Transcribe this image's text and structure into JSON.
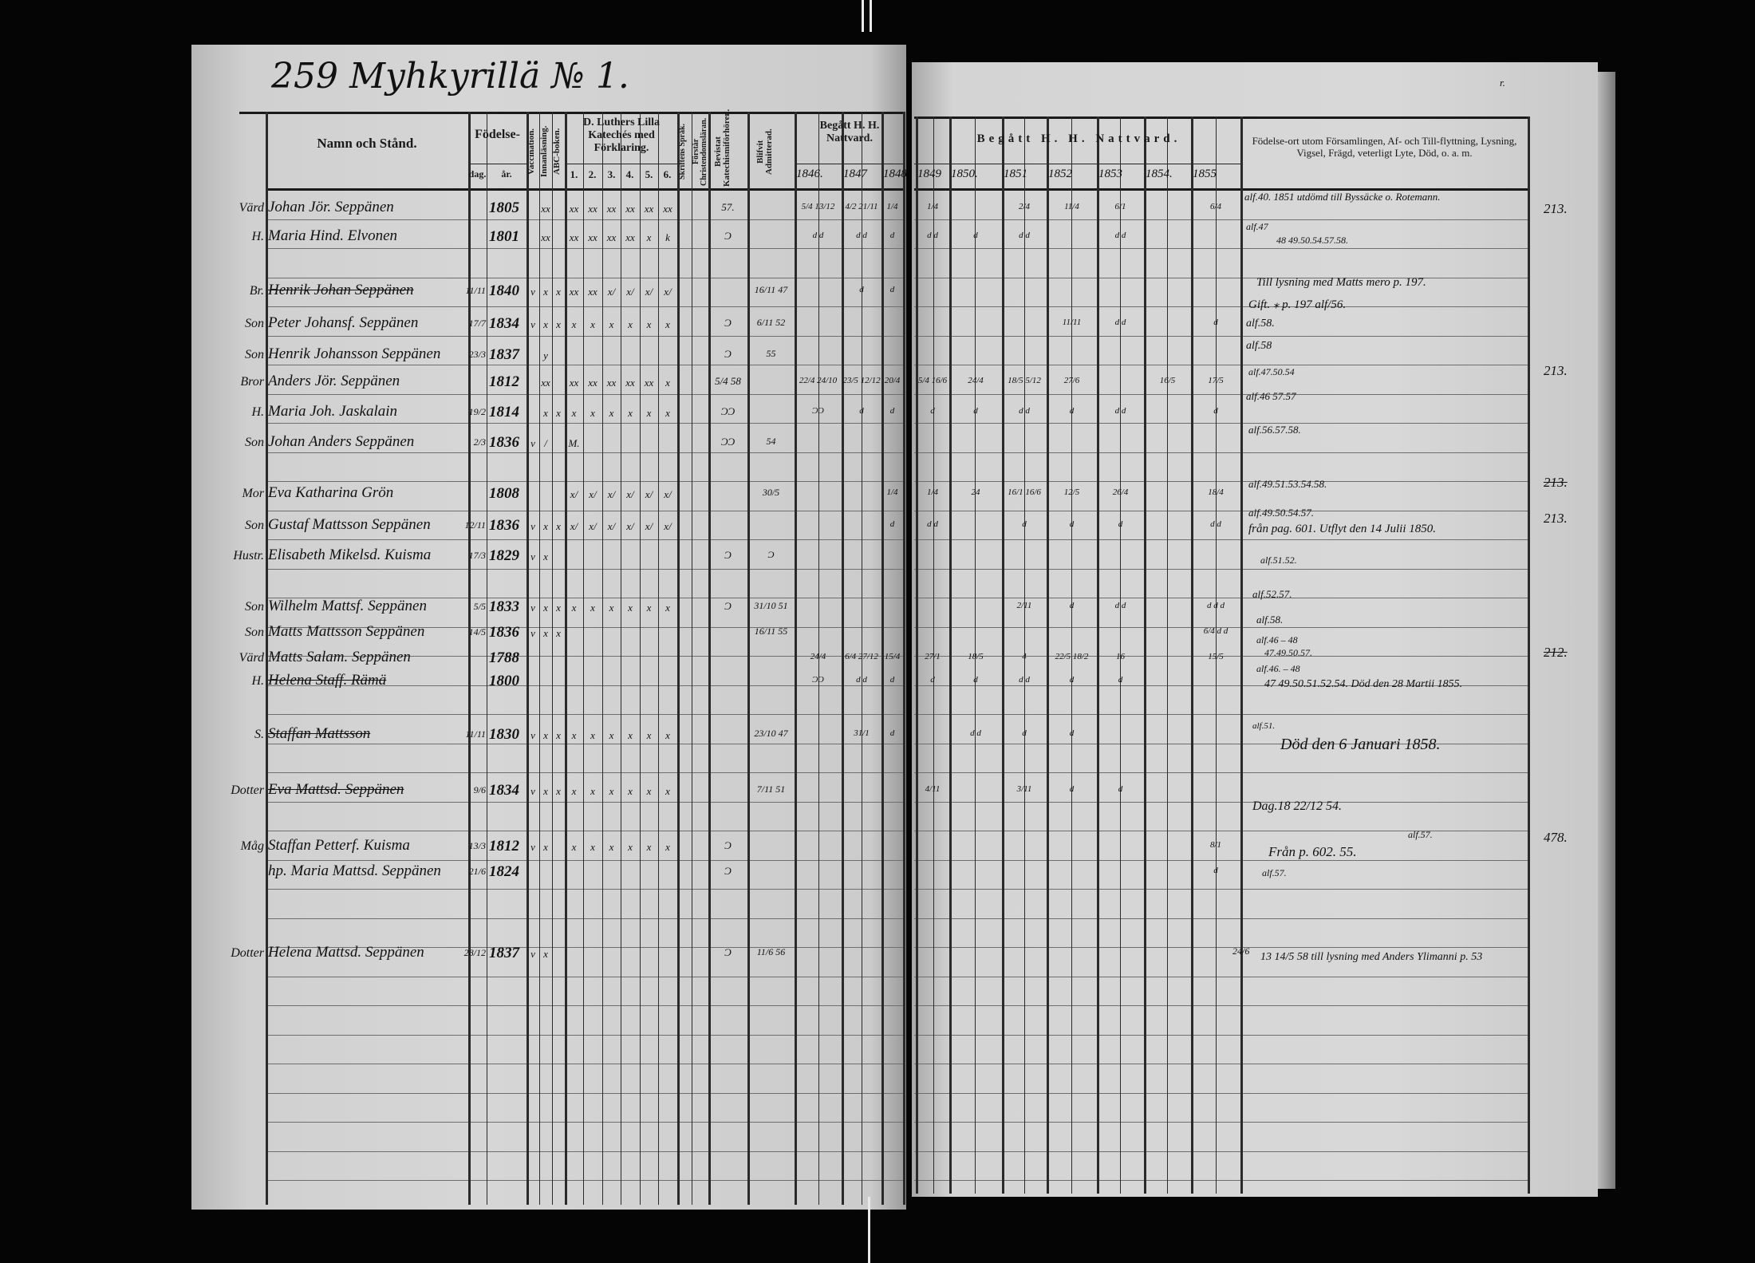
{
  "page_title": "259 Myhkyrillä № 1.",
  "corner_note": "r.",
  "headers": {
    "name": "Namn och Stånd.",
    "birth": "Födelse-",
    "day": "dag.",
    "year": "år.",
    "vaccination": "Vaccination.",
    "reading": "Innanläsning.",
    "abc": "ABC-boken.",
    "catechism": "D. Luthers Lilla Katechés med Förklaring.",
    "catechism_parts": [
      "1.",
      "2.",
      "3.",
      "4.",
      "5.",
      "6."
    ],
    "scripture": "Skriftens Språk.",
    "understands": "Förstår Christendomsläran.",
    "attended": "Bevistat Katechismiförhören.",
    "admitted": "Blifvit Admitterad.",
    "communion_left": "Begått H. H. Nattvard.",
    "communion_right": "Begått H. H. Nattvard.",
    "years": [
      "1846.",
      "1847",
      "1848",
      "1849",
      "1850.",
      "1851",
      "1852",
      "1853",
      "1854.",
      "1855"
    ],
    "remarks": "Födelse-ort utom Församlingen, Af- och Till-flyttning, Lysning, Vigsel, Frägd, veterligt Lyte, Död, o. a. m."
  },
  "entries": [
    {
      "role": "Värd",
      "name": "Johan Jör. Seppänen",
      "day": "",
      "year": "1805",
      "marks": [
        "",
        "xx",
        "",
        "xx",
        "xx",
        "xx",
        "xx",
        "xx",
        "xx"
      ],
      "attended": "57.",
      "admitted": "",
      "communion": [
        "5/4 13/12",
        "4/2 21/11",
        "1/4",
        "1/4",
        "",
        "2/4",
        "11/4",
        "6/1",
        "",
        "6/4"
      ],
      "struck": false
    },
    {
      "role": "H.",
      "name": "Maria Hind. Elvonen",
      "day": "",
      "year": "1801",
      "marks": [
        "",
        "xx",
        "",
        "xx",
        "xx",
        "xx",
        "xx",
        "x",
        "k"
      ],
      "attended": "Ɔ",
      "admitted": "",
      "communion": [
        "d d",
        "d d",
        "d",
        "d d",
        "d",
        "d d",
        "",
        "d d",
        "",
        ""
      ],
      "struck": false
    },
    {
      "role": "Br.",
      "name": "Henrik Johan Seppänen",
      "day": "11/11",
      "year": "1840",
      "marks": [
        "v",
        "x",
        "x",
        "xx",
        "xx",
        "x/",
        "x/",
        "x/",
        "x/"
      ],
      "attended": "",
      "admitted": "16/11 47",
      "communion": [
        "",
        "d",
        "d",
        "",
        "",
        "",
        "",
        "",
        "",
        ""
      ],
      "struck": true
    },
    {
      "role": "Son",
      "name": "Peter Johansf. Seppänen",
      "day": "17/7",
      "year": "1834",
      "marks": [
        "v",
        "x",
        "x",
        "x",
        "x",
        "x",
        "x",
        "x",
        "x"
      ],
      "attended": "Ɔ",
      "admitted": "6/11 52",
      "communion": [
        "",
        "",
        "",
        "",
        "",
        "",
        "11/11",
        "d d",
        "",
        "d"
      ],
      "struck": false
    },
    {
      "role": "Son",
      "name": "Henrik Johansson Seppänen",
      "day": "23/3",
      "year": "1837",
      "marks": [
        "",
        "y",
        "",
        "",
        "",
        "",
        "",
        "",
        ""
      ],
      "attended": "Ɔ",
      "admitted": "55",
      "communion": [
        "",
        "",
        "",
        "",
        "",
        "",
        "",
        "",
        "",
        ""
      ],
      "struck": false
    },
    {
      "role": "Bror",
      "name": "Anders Jör. Seppänen",
      "day": "",
      "year": "1812",
      "marks": [
        "",
        "xx",
        "",
        "xx",
        "xx",
        "xx",
        "xx",
        "xx",
        "x"
      ],
      "attended": "5/4 58",
      "admitted": "",
      "communion": [
        "22/4 24/10",
        "23/5 12/12",
        "20/4",
        "5/4 16/6",
        "24/4",
        "18/5 5/12",
        "27/6",
        "",
        "16/5",
        "17/5"
      ],
      "struck": false
    },
    {
      "role": "H.",
      "name": "Maria Joh. Jaskalain",
      "day": "19/2",
      "year": "1814",
      "marks": [
        "",
        "x",
        "x",
        "x",
        "x",
        "x",
        "x",
        "x",
        "x"
      ],
      "attended": "ƆƆ",
      "admitted": "",
      "communion": [
        "ƆƆ",
        "d",
        "d",
        "d",
        "d",
        "d d",
        "d",
        "d d",
        "",
        "d"
      ],
      "struck": false
    },
    {
      "role": "Son",
      "name": "Johan Anders Seppänen",
      "day": "2/3",
      "year": "1836",
      "marks": [
        "v",
        "/",
        "",
        "M.",
        "",
        "",
        "",
        "",
        ""
      ],
      "attended": "ƆƆ",
      "admitted": "54",
      "communion": [
        "",
        "",
        "",
        "",
        "",
        "",
        "",
        "",
        "",
        ""
      ],
      "struck": false
    },
    {
      "role": "Mor",
      "name": "Eva Katharina Grön",
      "day": "",
      "year": "1808",
      "marks": [
        "",
        "",
        "",
        "x/",
        "x/",
        "x/",
        "x/",
        "x/",
        "x/"
      ],
      "attended": "",
      "admitted": "30/5",
      "communion": [
        "",
        "",
        "1/4",
        "1/4",
        "24",
        "16/1 16/6",
        "12/5",
        "26/4",
        "",
        "18/4"
      ],
      "struck": false
    },
    {
      "role": "Son",
      "name": "Gustaf Mattsson Seppänen",
      "day": "12/11",
      "year": "1836",
      "marks": [
        "v",
        "x",
        "x",
        "x/",
        "x/",
        "x/",
        "x/",
        "x/",
        "x/"
      ],
      "attended": "",
      "admitted": "",
      "communion": [
        "",
        "",
        "d",
        "d d",
        "",
        "d",
        "d",
        "d",
        "",
        "d d"
      ],
      "struck": false
    },
    {
      "role": "Hustr.",
      "name": "Elisabeth Mikelsd. Kuisma",
      "day": "17/3",
      "year": "1829",
      "marks": [
        "v",
        "x",
        "",
        "",
        "",
        "",
        "",
        "",
        ""
      ],
      "attended": "Ɔ",
      "admitted": "Ɔ",
      "communion": [
        "",
        "",
        "",
        "",
        "",
        "",
        "",
        "",
        "",
        ""
      ],
      "struck": false
    },
    {
      "role": "Son",
      "name": "Wilhelm Mattsf. Seppänen",
      "day": "5/5",
      "year": "1833",
      "marks": [
        "v",
        "x",
        "x",
        "x",
        "x",
        "x",
        "x",
        "x",
        "x"
      ],
      "attended": "Ɔ",
      "admitted": "31/10 51",
      "communion": [
        "",
        "",
        "",
        "",
        "",
        "2/11",
        "d",
        "d d",
        "",
        "d d d"
      ],
      "struck": false
    },
    {
      "role": "Son",
      "name": "Matts Mattsson Seppänen",
      "day": "14/5",
      "year": "1836",
      "marks": [
        "v",
        "x",
        "x",
        "",
        "",
        "",
        "",
        "",
        ""
      ],
      "attended": "",
      "admitted": "16/11 55",
      "communion": [
        "",
        "",
        "",
        "",
        "",
        "",
        "",
        "",
        "",
        "6/4 d d"
      ],
      "struck": false
    },
    {
      "role": "Värd",
      "name": "Matts Salam. Seppänen",
      "day": "",
      "year": "1788",
      "marks": [
        "",
        "",
        "",
        "",
        "",
        "",
        "",
        "",
        ""
      ],
      "attended": "",
      "admitted": "",
      "communion": [
        "24/4",
        "6/4 27/12",
        "15/4",
        "27/1",
        "18/5",
        "4",
        "22/5 18/2",
        "16",
        "",
        "15/5"
      ],
      "struck": false
    },
    {
      "role": "H.",
      "name": "Helena Staff. Rämä",
      "day": "",
      "year": "1800",
      "marks": [
        "",
        "",
        "",
        "",
        "",
        "",
        "",
        "",
        ""
      ],
      "attended": "",
      "admitted": "",
      "communion": [
        "ƆƆ",
        "d d",
        "d",
        "d",
        "d",
        "d d",
        "d",
        "d",
        "",
        ""
      ],
      "struck": true
    },
    {
      "role": "S.",
      "name": "Staffan Mattsson",
      "day": "11/11",
      "year": "1830",
      "marks": [
        "v",
        "x",
        "x",
        "x",
        "x",
        "x",
        "x",
        "x",
        "x"
      ],
      "attended": "",
      "admitted": "23/10 47",
      "communion": [
        "",
        "31/1",
        "d",
        "",
        "d d",
        "d",
        "d",
        "",
        "",
        ""
      ],
      "struck": true
    },
    {
      "role": "Dotter",
      "name": "Eva Mattsd. Seppänen",
      "day": "9/6",
      "year": "1834",
      "marks": [
        "v",
        "x",
        "x",
        "x",
        "x",
        "x",
        "x",
        "x",
        "x"
      ],
      "attended": "",
      "admitted": "7/11 51",
      "communion": [
        "",
        "",
        "",
        "4/11",
        "",
        "3/11",
        "d",
        "d",
        "",
        ""
      ],
      "struck": true
    },
    {
      "role": "Måg",
      "name": "Staffan Petterf. Kuisma",
      "day": "13/3",
      "year": "1812",
      "marks": [
        "v",
        "x",
        "",
        "x",
        "x",
        "x",
        "x",
        "x",
        "x"
      ],
      "attended": "Ɔ",
      "admitted": "",
      "communion": [
        "",
        "",
        "",
        "",
        "",
        "",
        "",
        "",
        "",
        "8/1"
      ],
      "struck": false
    },
    {
      "role": "",
      "name": "hp. Maria Mattsd. Seppänen",
      "day": "21/6",
      "year": "1824",
      "marks": [
        "",
        "",
        "",
        "",
        "",
        "",
        "",
        "",
        ""
      ],
      "attended": "Ɔ",
      "admitted": "",
      "communion": [
        "",
        "",
        "",
        "",
        "",
        "",
        "",
        "",
        "",
        "d"
      ],
      "struck": false
    },
    {
      "role": "Dotter",
      "name": "Helena Mattsd. Seppänen",
      "day": "28/12",
      "year": "1837",
      "marks": [
        "v",
        "x",
        "",
        "",
        "",
        "",
        "",
        "",
        ""
      ],
      "attended": "Ɔ",
      "admitted": "11/6 56",
      "communion": [
        "",
        "",
        "",
        "",
        "",
        "",
        "",
        "",
        "",
        ""
      ],
      "struck": false
    }
  ],
  "remarks": [
    "alf.40. 1851 utdömd till Byssäcke o. Rotemann.",
    "alf.47",
    "48 49.50.54.57.58.",
    "Till lysning med Matts mero p. 197.",
    "Gift. ⁎ p. 197 alf/56.",
    "alf.58.",
    "alf.58",
    "alf.47.50.54",
    "alf.46 57.57",
    "alf.56.57.58.",
    "alf.49.51.53.54.58.",
    "alf.49.50.54.57.",
    "från pag. 601. Utflyt den 14 Julii 1850.",
    "alf.51.52.",
    "alf.52.57.",
    "alf.58.",
    "alf.46 – 48",
    "47.49.50.57.",
    "alf.46. – 48",
    "47 49.50.51.52.54. Död den 28 Martii 1855.",
    "alf.51.",
    "Död den 6 Januari 1858.",
    "Dag.18 22/12 54.",
    "Från p. 602. 55.",
    "alf.57.",
    "alf.57.",
    "24/6",
    "13 14/5 58 till lysning med Anders Ylimanni p. 53"
  ],
  "page_refs": [
    {
      "value": "213.",
      "struck": false
    },
    {
      "value": "213.",
      "struck": false
    },
    {
      "value": "213.",
      "struck": true
    },
    {
      "value": "213.",
      "struck": false
    },
    {
      "value": "212.",
      "struck": true
    },
    {
      "value": "478.",
      "struck": false
    }
  ]
}
